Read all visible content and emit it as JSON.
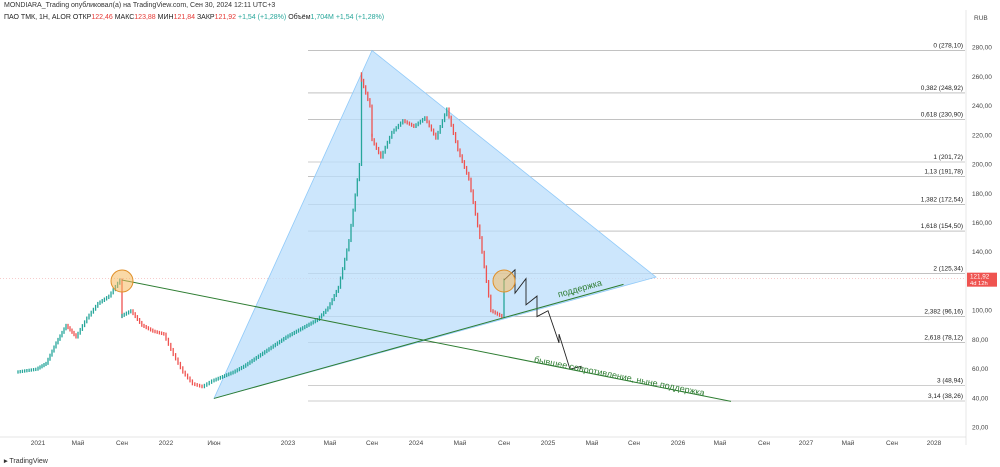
{
  "header": {
    "publisher": "MONDIARA_Trading опубликовал(а) на TradingView.com, Сен 30, 2024 12:11 UTC+3",
    "symbol": "ПАО ТМК, 1Н, ALOR",
    "o_label": "ОТКР",
    "o": "122,46",
    "h_label": "МАКС",
    "h": "123,88",
    "l_label": "МИН",
    "l": "121,84",
    "c_label": "ЗАКР",
    "c": "121,92",
    "chg": "+1,54 (+1,28%)",
    "vol_label": "Объём",
    "vol": "1,704M",
    "vol_chg": "+1,54 (+1,28%)"
  },
  "footer": {
    "brand": "TradingView"
  },
  "chart_data": {
    "type": "line",
    "currency": "RUB",
    "y_ticks": [
      "20,00",
      "40,00",
      "60,00",
      "80,00",
      "100,00",
      "120,00",
      "140,00",
      "160,00",
      "180,00",
      "200,00",
      "220,00",
      "240,00",
      "260,00",
      "280,00"
    ],
    "y_tick_values": [
      20,
      40,
      60,
      80,
      100,
      120,
      140,
      160,
      180,
      200,
      220,
      240,
      260,
      280
    ],
    "ylim": [
      15,
      292
    ],
    "x_ticks": [
      "2021",
      "Май",
      "Сен",
      "2022",
      "Июн",
      "2023",
      "Май",
      "Сен",
      "2024",
      "Май",
      "Сен",
      "2025",
      "Май",
      "Сен",
      "2026",
      "Май",
      "Сен",
      "2027",
      "Май",
      "Сен",
      "2028"
    ],
    "x_tick_dates": [
      "2021-01",
      "2021-05",
      "2021-09",
      "2022-01",
      "2022-06",
      "2023-01",
      "2023-05",
      "2023-09",
      "2024-01",
      "2024-05",
      "2024-09",
      "2025-01",
      "2025-05",
      "2025-09",
      "2026-01",
      "2026-05",
      "2026-09",
      "2027-01",
      "2027-05",
      "2027-09",
      "2028-01"
    ],
    "price_series": {
      "dates": [
        "2020-11",
        "2021-01",
        "2021-02",
        "2021-03",
        "2021-04",
        "2021-05",
        "2021-06",
        "2021-07",
        "2021-08",
        "2021-09",
        "2021-09",
        "2021-10",
        "2021-11",
        "2021-12",
        "2022-01",
        "2022-02",
        "2022-03",
        "2022-04",
        "2022-05",
        "2022-06",
        "2022-07",
        "2022-08",
        "2022-09",
        "2022-10",
        "2022-11",
        "2022-12",
        "2023-01",
        "2023-02",
        "2023-03",
        "2023-04",
        "2023-05",
        "2023-06",
        "2023-07",
        "2023-08",
        "2023-08",
        "2023-09",
        "2023-09",
        "2023-10",
        "2023-11",
        "2023-12",
        "2024-01",
        "2024-02",
        "2024-03",
        "2024-04",
        "2024-05",
        "2024-06",
        "2024-07",
        "2024-08",
        "2024-09",
        "2024-09"
      ],
      "values": [
        58,
        60,
        64,
        78,
        90,
        82,
        95,
        105,
        110,
        121,
        96,
        100,
        90,
        86,
        84,
        70,
        58,
        50,
        48,
        52,
        55,
        58,
        62,
        67,
        72,
        77,
        82,
        86,
        90,
        94,
        102,
        116,
        148,
        200,
        262,
        240,
        220,
        205,
        222,
        230,
        226,
        232,
        218,
        238,
        210,
        190,
        150,
        100,
        96,
        121
      ]
    },
    "forecast_path": {
      "dates": [
        "2024-09",
        "2024-10",
        "2024-10",
        "2024-11",
        "2024-11",
        "2024-12",
        "2024-12",
        "2025-01",
        "2025-02",
        "2025-02",
        "2025-03",
        "2025-04",
        "2025-04"
      ],
      "values": [
        121,
        128,
        112,
        122,
        104,
        110,
        96,
        100,
        78,
        84,
        60,
        62,
        60
      ]
    },
    "fib_levels": [
      {
        "label": "0 (278,10)",
        "value": 278.1
      },
      {
        "label": "0,382 (248,92)",
        "value": 248.92
      },
      {
        "label": "0,618 (230,90)",
        "value": 230.9
      },
      {
        "label": "1 (201,72)",
        "value": 201.72
      },
      {
        "label": "1,13 (191,78)",
        "value": 191.78
      },
      {
        "label": "1,382 (172,54)",
        "value": 172.54
      },
      {
        "label": "1,618 (154,50)",
        "value": 154.5
      },
      {
        "label": "2 (125,34)",
        "value": 125.34
      },
      {
        "label": "2,382 (96,16)",
        "value": 96.16
      },
      {
        "label": "2,618 (78,12)",
        "value": 78.12
      },
      {
        "label": "3 (48,94)",
        "value": 48.94
      },
      {
        "label": "3,14 (38,26)",
        "value": 38.26
      }
    ],
    "triangle": [
      [
        "2022-06",
        40
      ],
      [
        "2023-09",
        278
      ],
      [
        "2025-11",
        123
      ]
    ],
    "support_line": {
      "from": [
        "2022-06",
        40
      ],
      "to": [
        "2025-08",
        118
      ],
      "label": "поддержка"
    },
    "old_resistance_line": {
      "from": [
        "2021-09",
        121
      ],
      "to": [
        "2026-06",
        38
      ],
      "label": "бывшее сопротивление, ныне поддержка"
    },
    "highlight_points": [
      [
        "2021-09",
        121
      ],
      [
        "2024-09",
        121
      ]
    ],
    "last_price": {
      "value": "121,92",
      "timer": "4d 12h",
      "numeric": 121.92
    },
    "colors": {
      "triangle": "#bbdefb",
      "line": "#2e7d32",
      "up": "#26a69a",
      "down": "#ef5350",
      "circle": "#f5b95e"
    }
  }
}
